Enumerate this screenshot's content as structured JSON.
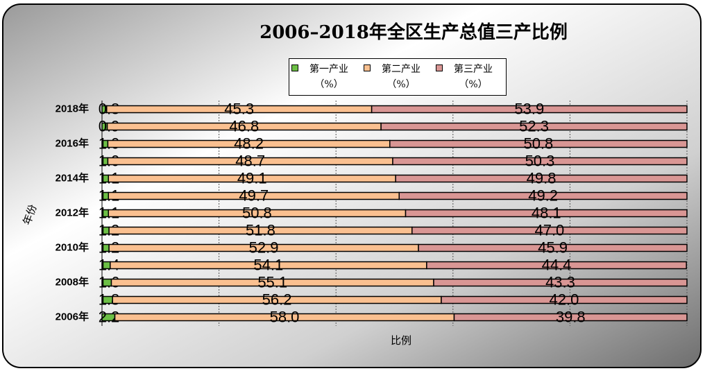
{
  "chart_data": {
    "type": "bar",
    "orientation": "horizontal",
    "stacked": true,
    "title": "2006–2018年全区生产总值三产比例",
    "x_label": "比例",
    "y_label": "年份",
    "categories": [
      "2018年",
      null,
      "2016年",
      null,
      "2014年",
      null,
      "2012年",
      null,
      "2010年",
      null,
      "2008年",
      null,
      "2006年"
    ],
    "series": [
      {
        "name": "第一产业（%）",
        "color": "#6cbf45",
        "values": [
          0.8,
          0.9,
          1.0,
          1.0,
          1.1,
          1.1,
          1.1,
          1.2,
          1.2,
          1.4,
          1.6,
          1.8,
          2.2
        ],
        "value_labels": [
          "0.8",
          "0.9",
          "1.0",
          "1.0",
          "1.1",
          "1.1",
          "1.1",
          "1.2",
          "1.2",
          "1.4",
          "1.6",
          "1.8",
          "2.2"
        ]
      },
      {
        "name": "第二产业（%）",
        "color": "#fac090",
        "values": [
          45.3,
          46.8,
          48.2,
          48.7,
          49.1,
          49.7,
          50.8,
          51.8,
          52.9,
          54.1,
          55.1,
          56.2,
          58.0
        ],
        "value_labels": [
          "45.3",
          "46.8",
          "48.2",
          "48.7",
          "49.1",
          "49.7",
          "50.8",
          "51.8",
          "52.9",
          "54.1",
          "55.1",
          "56.2",
          "58.0"
        ]
      },
      {
        "name": "第三产业（%）",
        "color": "#d99694",
        "values": [
          53.9,
          52.3,
          50.8,
          50.3,
          49.8,
          49.2,
          48.1,
          47.0,
          45.9,
          44.4,
          43.3,
          42.0,
          39.8
        ],
        "value_labels": [
          "53.9",
          "52.3",
          "50.8",
          "50.3",
          "49.8",
          "49.2",
          "48.1",
          "47.0",
          "45.9",
          "44.4",
          "43.3",
          "42.0",
          "39.8"
        ]
      }
    ],
    "xlim": [
      0,
      100
    ],
    "xticks": [
      0,
      20,
      40,
      60,
      80,
      100
    ],
    "grid": true,
    "legend": "top"
  }
}
